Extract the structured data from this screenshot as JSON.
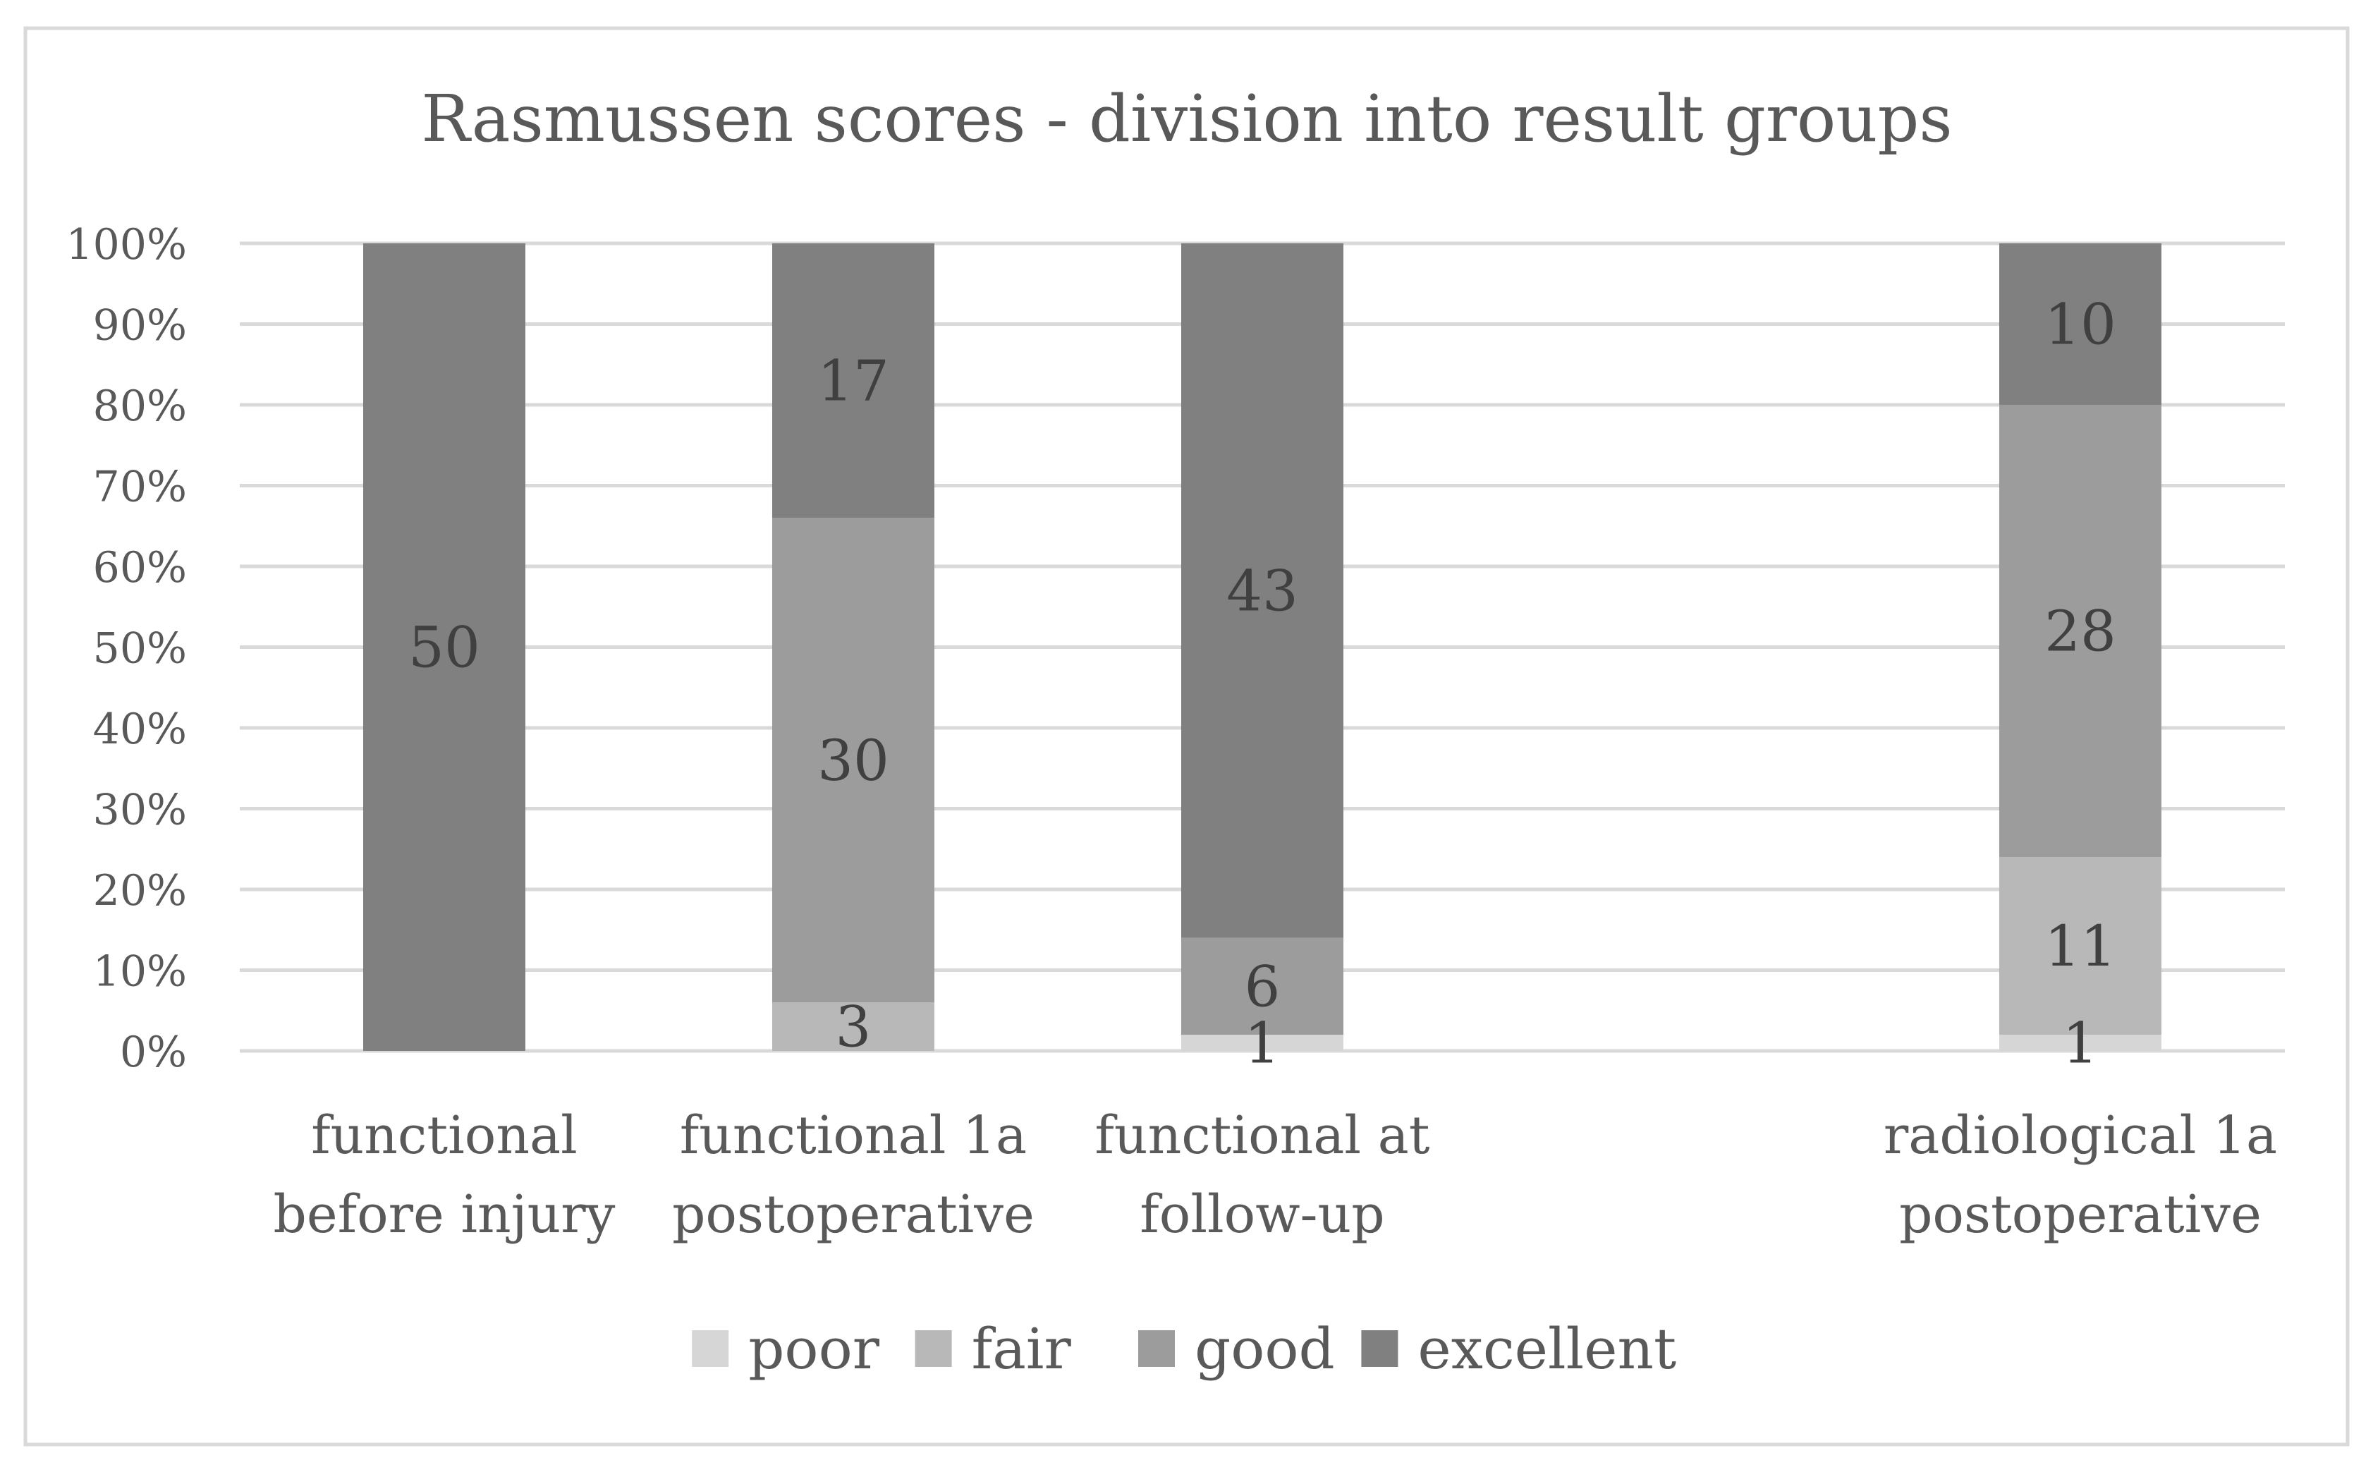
{
  "chart_data": {
    "type": "bar",
    "stacked": true,
    "percent_stacked": true,
    "title": "Rasmussen scores - division into result groups",
    "xlabel": "",
    "ylabel": "",
    "ylim": [
      0,
      100
    ],
    "y_ticks": [
      "0%",
      "10%",
      "20%",
      "30%",
      "40%",
      "50%",
      "60%",
      "70%",
      "80%",
      "90%",
      "100%"
    ],
    "grid": true,
    "legend_position": "bottom",
    "categories": [
      [
        "functional",
        "before injury"
      ],
      [
        "functional 1a",
        "postoperative"
      ],
      [
        "functional at",
        "follow-up"
      ],
      [],
      [
        "radiological 1a",
        "postoperative"
      ]
    ],
    "series": [
      {
        "name": "poor",
        "color": "#d6d6d6",
        "values": [
          0,
          0,
          1,
          0,
          1
        ]
      },
      {
        "name": "fair",
        "color": "#b8b8b8",
        "values": [
          0,
          3,
          0,
          0,
          11
        ]
      },
      {
        "name": "good",
        "color": "#9c9c9c",
        "values": [
          0,
          30,
          6,
          0,
          28
        ]
      },
      {
        "name": "excellent",
        "color": "#808080",
        "values": [
          50,
          17,
          43,
          0,
          10
        ]
      }
    ]
  }
}
